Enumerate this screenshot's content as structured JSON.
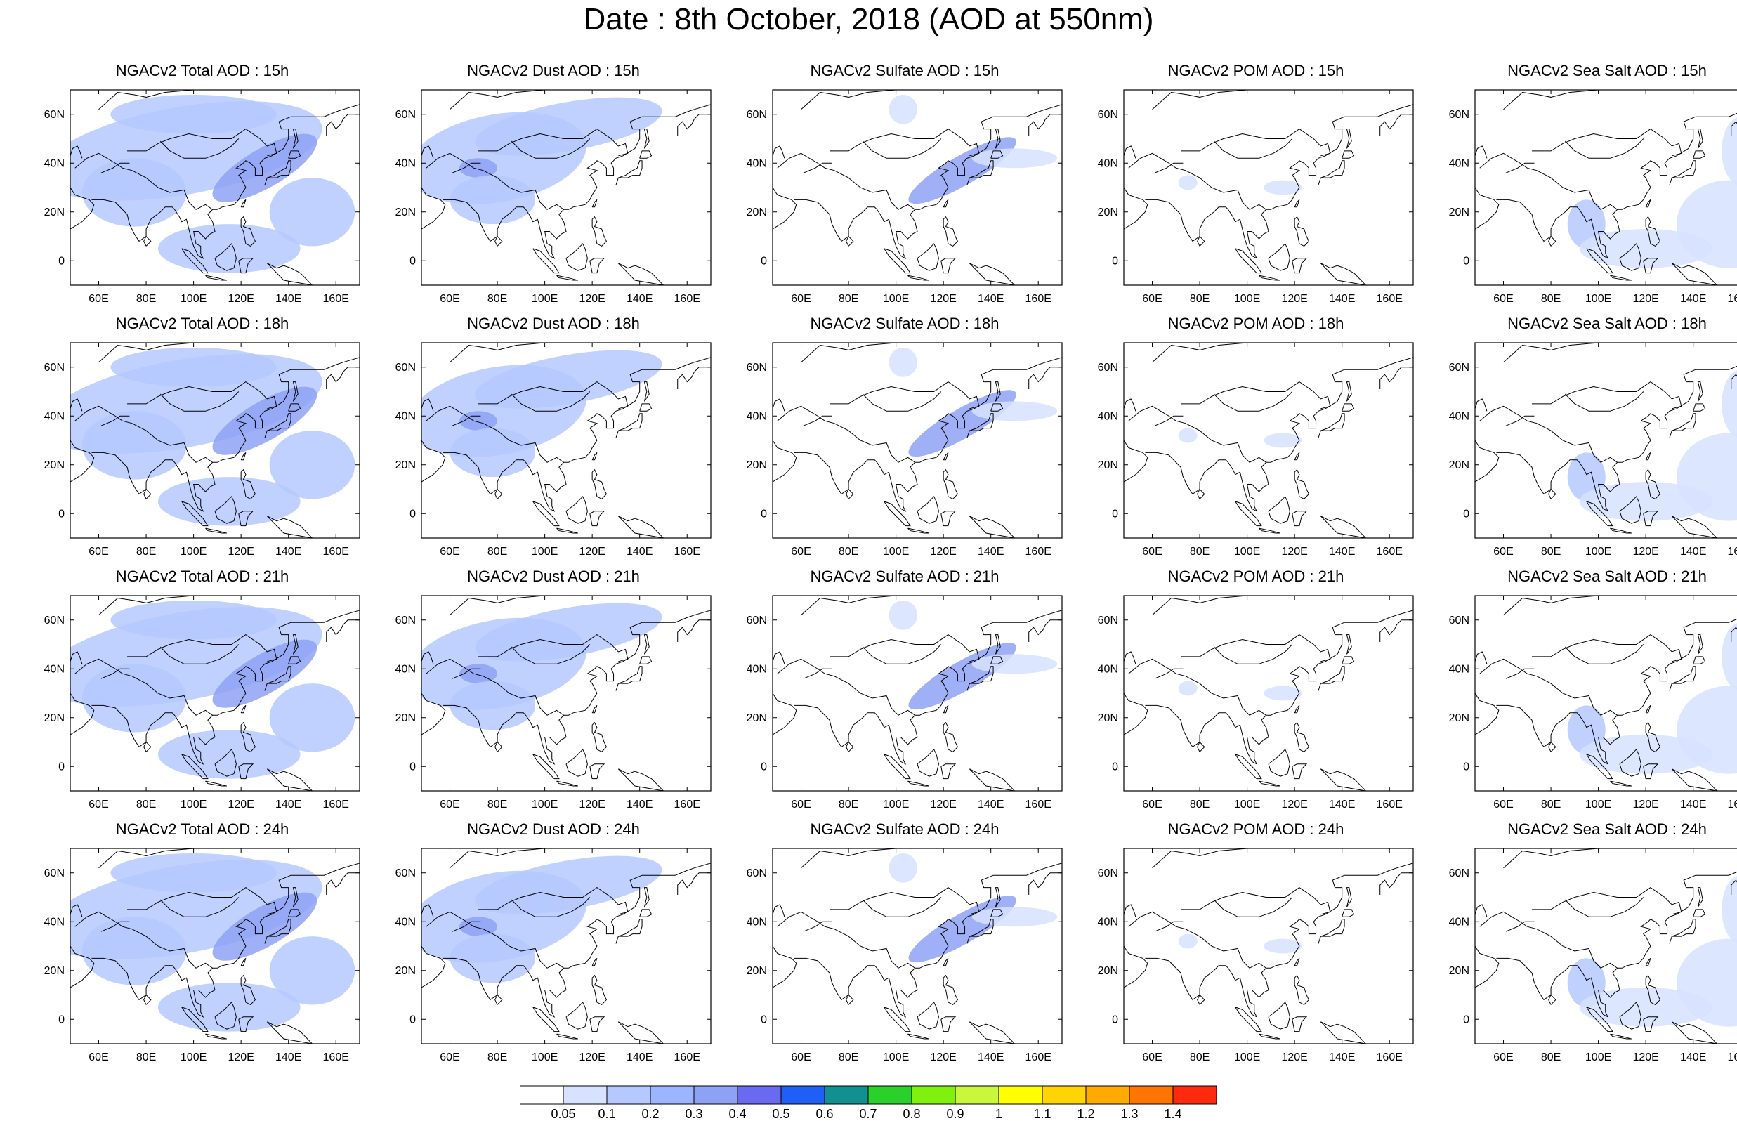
{
  "title": "Date : 8th October, 2018 (AOD at 550nm)",
  "map_extent": {
    "lon": [
      48,
      170
    ],
    "lat": [
      -10,
      70
    ]
  },
  "lat_ticks": [
    {
      "value": 60,
      "label": "60N"
    },
    {
      "value": 40,
      "label": "40N"
    },
    {
      "value": 20,
      "label": "20N"
    },
    {
      "value": 0,
      "label": "0"
    }
  ],
  "lon_ticks": [
    {
      "value": 60,
      "label": "60E"
    },
    {
      "value": 80,
      "label": "80E"
    },
    {
      "value": 100,
      "label": "100E"
    },
    {
      "value": 120,
      "label": "120E"
    },
    {
      "value": 140,
      "label": "140E"
    },
    {
      "value": 160,
      "label": "160E"
    }
  ],
  "panels": [
    [
      {
        "title": "NGACv2 Total AOD : 15h"
      },
      {
        "title": "NGACv2 Dust AOD : 15h"
      },
      {
        "title": "NGACv2 Sulfate AOD : 15h"
      },
      {
        "title": "NGACv2 POM AOD : 15h"
      },
      {
        "title": "NGACv2 Sea Salt AOD : 15h"
      }
    ],
    [
      {
        "title": "NGACv2 Total AOD : 18h"
      },
      {
        "title": "NGACv2 Dust AOD : 18h"
      },
      {
        "title": "NGACv2 Sulfate AOD : 18h"
      },
      {
        "title": "NGACv2 POM AOD : 18h"
      },
      {
        "title": "NGACv2 Sea Salt AOD : 18h"
      }
    ],
    [
      {
        "title": "NGACv2 Total AOD : 21h"
      },
      {
        "title": "NGACv2 Dust AOD : 21h"
      },
      {
        "title": "NGACv2 Sulfate AOD : 21h"
      },
      {
        "title": "NGACv2 POM AOD : 21h"
      },
      {
        "title": "NGACv2 Sea Salt AOD : 21h"
      }
    ],
    [
      {
        "title": "NGACv2 Total AOD : 24h"
      },
      {
        "title": "NGACv2 Dust AOD : 24h"
      },
      {
        "title": "NGACv2 Sulfate AOD : 24h"
      },
      {
        "title": "NGACv2 POM AOD : 24h"
      },
      {
        "title": "NGACv2 Sea Salt  AOD : 24h"
      }
    ]
  ],
  "colorbar": {
    "labels": [
      "0.05",
      "0.1",
      "0.2",
      "0.3",
      "0.4",
      "0.5",
      "0.6",
      "0.7",
      "0.8",
      "0.9",
      "1",
      "1.1",
      "1.2",
      "1.3",
      "1.4"
    ],
    "colors": [
      "#ffffff",
      "#d6e2ff",
      "#b5c9ff",
      "#9cb5ff",
      "#8ea2f5",
      "#6a6af0",
      "#1f5ef7",
      "#109090",
      "#2ad12a",
      "#7ef20c",
      "#c9f73c",
      "#ffff00",
      "#ffd400",
      "#ffaa00",
      "#ff7500",
      "#ff2a0e"
    ]
  },
  "aerosol_types": {
    "total": {
      "color": "#b5c9ff",
      "accent": "#8ea2f5"
    },
    "dust": {
      "color": "#b5c9ff",
      "accent": "#8ea2f5"
    },
    "sulfate": {
      "color": "#d6e2ff",
      "accent": "#8ea2f5"
    },
    "pom": {
      "color": "#d6e2ff",
      "accent": "#b5c9ff"
    },
    "seasalt": {
      "color": "#d6e2ff",
      "accent": "#b5c9ff"
    }
  }
}
